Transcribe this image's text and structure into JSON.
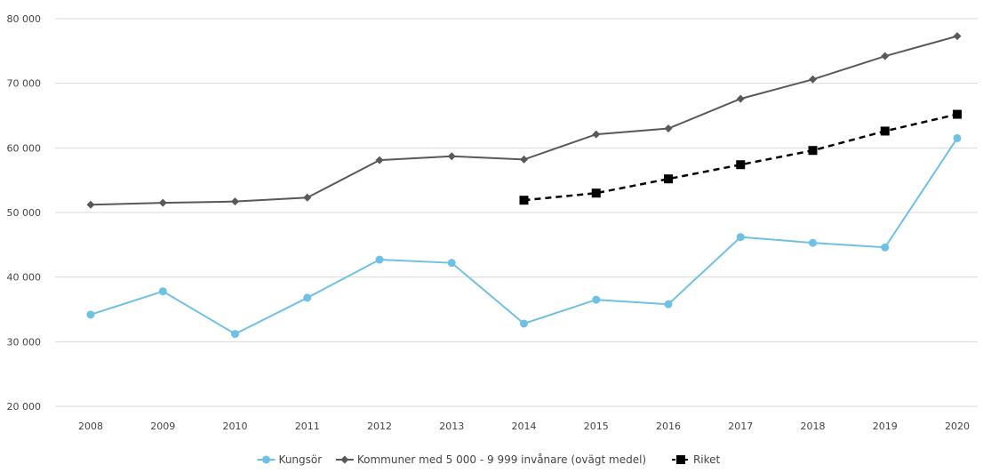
{
  "chart_data": {
    "type": "line",
    "title": "",
    "xlabel": "",
    "ylabel": "",
    "categories": [
      "2008",
      "2009",
      "2010",
      "2011",
      "2012",
      "2013",
      "2014",
      "2015",
      "2016",
      "2017",
      "2018",
      "2019",
      "2020"
    ],
    "y_ticks": [
      "20 000",
      "30 000",
      "40 000",
      "50 000",
      "60 000",
      "70 000",
      "80 000"
    ],
    "ylim": [
      20000,
      80000
    ],
    "grid": "horizontal",
    "legend_position": "bottom",
    "series": [
      {
        "name": "Kungsör",
        "color": "#6ec1e4",
        "marker": "circle",
        "dash": "solid",
        "values": [
          34200,
          37800,
          31200,
          36800,
          42700,
          42200,
          32800,
          36500,
          35800,
          46200,
          45300,
          44600,
          61500
        ]
      },
      {
        "name": "Kommuner med 5 000 - 9 999 invånare (ovägt medel)",
        "color": "#595959",
        "marker": "diamond",
        "dash": "solid",
        "values": [
          51200,
          51500,
          51700,
          52300,
          58100,
          58700,
          58200,
          62100,
          63000,
          67600,
          70600,
          74200,
          77300
        ]
      },
      {
        "name": "Riket",
        "color": "#000000",
        "marker": "square",
        "dash": "dashed",
        "values": [
          null,
          null,
          null,
          null,
          null,
          null,
          51900,
          53000,
          55200,
          57400,
          59600,
          62600,
          65200
        ]
      }
    ]
  }
}
